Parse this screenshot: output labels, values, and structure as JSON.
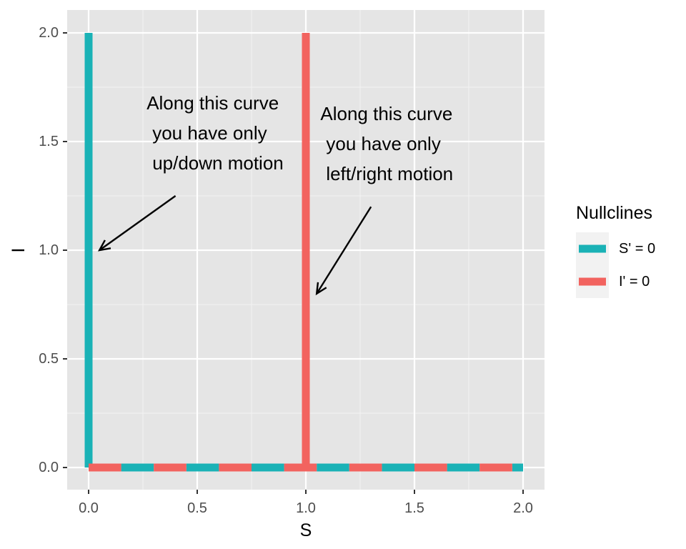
{
  "chart_data": {
    "type": "line",
    "xlabel": "S",
    "ylabel": "I",
    "xlim": [
      -0.1,
      2.1
    ],
    "ylim": [
      -0.1,
      2.1
    ],
    "x_ticks": [
      0,
      0.5,
      1,
      1.5,
      2
    ],
    "x_tick_labels": [
      "0.0",
      "0.5",
      "1.0",
      "1.5",
      "2.0"
    ],
    "y_ticks": [
      0,
      0.5,
      1,
      1.5,
      2
    ],
    "y_tick_labels": [
      "0.0",
      "0.5",
      "1.0",
      "1.5",
      "2.0"
    ],
    "grid": true,
    "legend": {
      "title": "Nullclines",
      "position": "right"
    },
    "series": [
      {
        "name": "S' = 0",
        "color": "#1ab2b6",
        "segments": [
          {
            "x": [
              0,
              0
            ],
            "y": [
              0,
              2
            ]
          },
          {
            "x": [
              0,
              2
            ],
            "y": [
              0,
              0
            ]
          }
        ]
      },
      {
        "name": "I' = 0",
        "color": "#f2635f",
        "segments": [
          {
            "x": [
              1,
              1
            ],
            "y": [
              0,
              2
            ]
          },
          {
            "x": [
              0,
              2
            ],
            "y": [
              0,
              0
            ]
          }
        ]
      }
    ],
    "annotations": [
      {
        "lines": [
          "Along this curve",
          "you have only",
          "up/down motion"
        ],
        "text_at": [
          0.3,
          1.55
        ],
        "arrow_from": [
          0.4,
          1.25
        ],
        "arrow_to": [
          0.05,
          1.0
        ]
      },
      {
        "lines": [
          "Along this curve",
          "you have only",
          "left/right motion"
        ],
        "text_at": [
          1.1,
          1.5
        ],
        "arrow_from": [
          1.3,
          1.2
        ],
        "arrow_to": [
          1.05,
          0.8
        ]
      }
    ]
  }
}
